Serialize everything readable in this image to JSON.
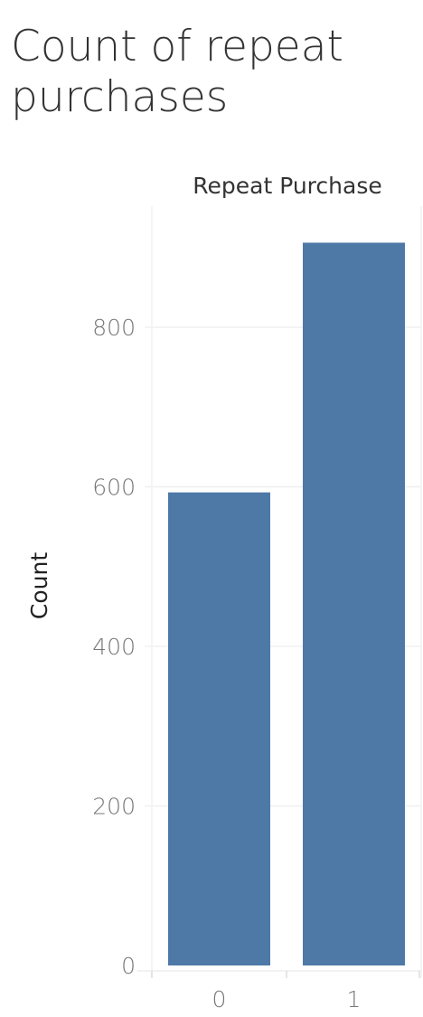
{
  "chart_data": {
    "type": "bar",
    "title": "Count of  repeat purchases",
    "column_header": "Repeat Purchase",
    "xlabel": "",
    "ylabel": "Count",
    "categories": [
      "0",
      "1"
    ],
    "values": [
      593,
      906
    ],
    "ylim": [
      0,
      1000
    ],
    "yticks": [
      0,
      200,
      400,
      600,
      800
    ],
    "bar_color": "#4e79a7",
    "grid": true,
    "legend": "none"
  }
}
